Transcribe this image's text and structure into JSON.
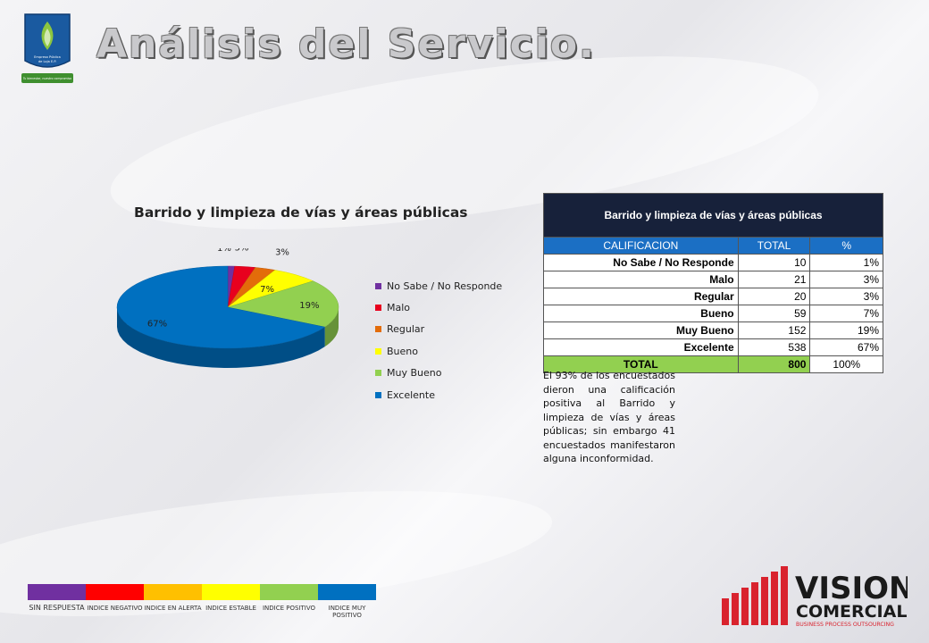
{
  "header": {
    "title": "Análisis del Servicio."
  },
  "logo": {
    "text_line1": "Empresa Pública",
    "text_line2": "de Loja E.P.",
    "banner": "Tu bienestar, nuestro compromiso"
  },
  "chart": {
    "title": "Barrido y limpieza de vías y áreas públicas"
  },
  "chart_data": {
    "type": "pie",
    "title": "Barrido y limpieza de vías y áreas públicas",
    "categories": [
      "No Sabe / No Responde",
      "Malo",
      "Regular",
      "Bueno",
      "Muy Bueno",
      "Excelente"
    ],
    "values": [
      1,
      3,
      3,
      7,
      19,
      67
    ],
    "labels": [
      "1%",
      "3%",
      "3%",
      "7%",
      "19%",
      "67%"
    ],
    "colors": [
      "#7030a0",
      "#e8001e",
      "#e36c0a",
      "#ffff00",
      "#92d050",
      "#0070c0"
    ],
    "legend_position": "right",
    "style": "3d"
  },
  "table": {
    "title": "Barrido y limpieza de vías y áreas públicas",
    "headers": [
      "CALIFICACION",
      "TOTAL",
      "%"
    ],
    "rows": [
      [
        "No Sabe / No Responde",
        "10",
        "1%"
      ],
      [
        "Malo",
        "21",
        "3%"
      ],
      [
        "Regular",
        "20",
        "3%"
      ],
      [
        "Bueno",
        "59",
        "7%"
      ],
      [
        "Muy Bueno",
        "152",
        "19%"
      ],
      [
        "Excelente",
        "538",
        "67%"
      ]
    ],
    "total": [
      "TOTAL",
      "800",
      "100%"
    ]
  },
  "summary": "El 93% de los encuestados dieron una calificación positiva al Barrido y limpieza de vías y áreas públicas; sin embargo 41 encuestados manifestaron alguna inconformidad.",
  "scale": [
    {
      "label": "SIN RESPUESTA",
      "color": "#7030a0"
    },
    {
      "label": "INDICE NEGATIVO",
      "color": "#ff0000"
    },
    {
      "label": "INDICE EN ALERTA",
      "color": "#ffc000"
    },
    {
      "label": "INDICE ESTABLE",
      "color": "#ffff00"
    },
    {
      "label": "INDICE POSITIVO",
      "color": "#92d050"
    },
    {
      "label": "INDICE MUY POSITIVO",
      "color": "#0070c0"
    }
  ],
  "brand": {
    "name_top": "VISION",
    "name_bottom": "COMERCIAL",
    "tagline": "BUSINESS PROCESS OUTSOURCING"
  }
}
